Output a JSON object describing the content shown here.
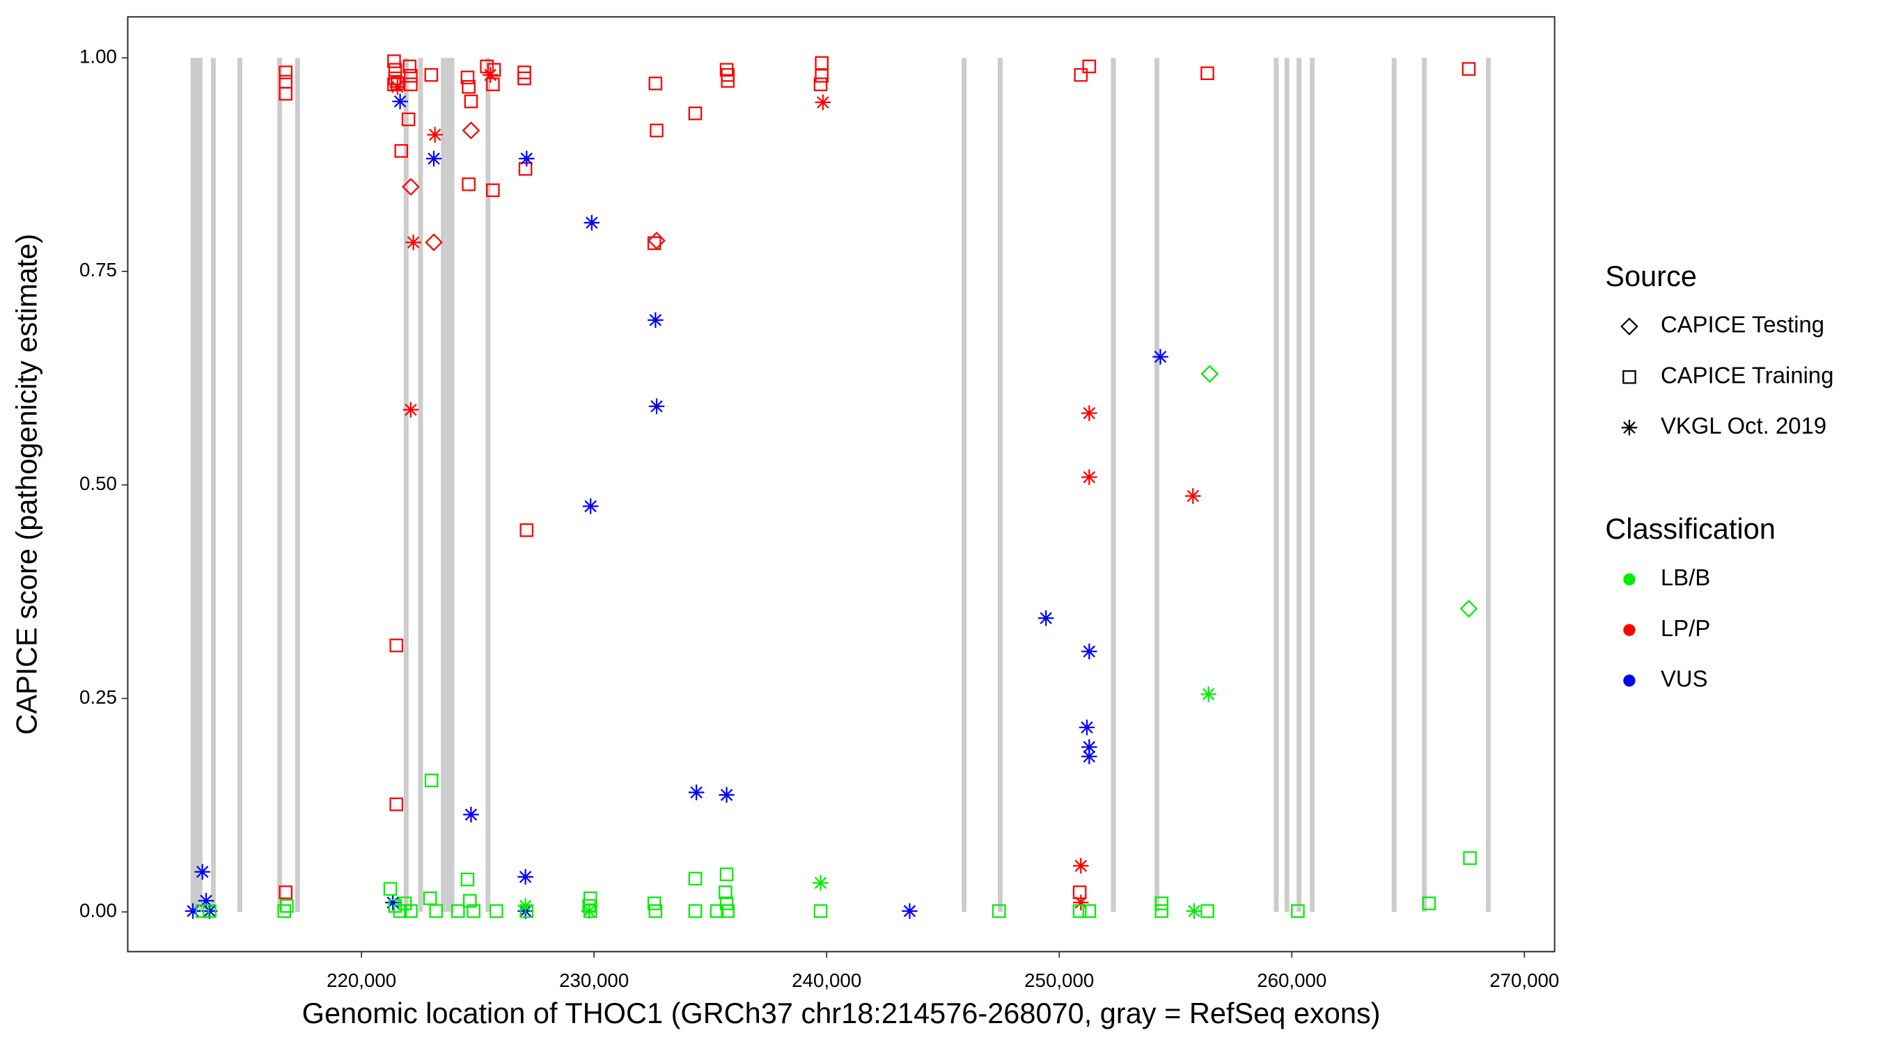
{
  "chart_data": {
    "type": "scatter",
    "xlabel": "Genomic location of THOC1 (GRCh37 chr18:214576-268070, gray = RefSeq exons)",
    "ylabel": "CAPICE score (pathogenicity estimate)",
    "xlim": [
      209950,
      271300
    ],
    "ylim": [
      -0.0465,
      1.048
    ],
    "xticks": [
      {
        "value": 220000,
        "label": "220,000"
      },
      {
        "value": 230000,
        "label": "230,000"
      },
      {
        "value": 240000,
        "label": "240,000"
      },
      {
        "value": 250000,
        "label": "250,000"
      },
      {
        "value": 260000,
        "label": "260,000"
      },
      {
        "value": 270000,
        "label": "270,000"
      }
    ],
    "yticks": [
      {
        "value": 0,
        "label": "0.00"
      },
      {
        "value": 0.25,
        "label": "0.25"
      },
      {
        "value": 0.5,
        "label": "0.50"
      },
      {
        "value": 0.75,
        "label": "0.75"
      },
      {
        "value": 1,
        "label": "1.00"
      }
    ],
    "grid": false,
    "exons": {
      "color": "#cccccc",
      "positions": [
        212750,
        212900,
        213060,
        213630,
        214770,
        216480,
        217250,
        221920,
        222540,
        223520,
        223730,
        223890,
        225440,
        245910,
        247460,
        252330,
        254200,
        259330,
        259790,
        260310,
        260880,
        264400,
        265700,
        268450
      ]
    },
    "legend": {
      "source": {
        "title": "Source",
        "items": [
          {
            "label": "CAPICE Testing",
            "marker": "diamond"
          },
          {
            "label": "CAPICE Training",
            "marker": "square"
          },
          {
            "label": "VKGL Oct. 2019",
            "marker": "asterisk"
          }
        ]
      },
      "classification": {
        "title": "Classification",
        "items": [
          {
            "label": "LB/B",
            "color": "#00ee00"
          },
          {
            "label": "LP/P",
            "color": "#ff0000"
          },
          {
            "label": "VUS",
            "color": "#0000ff"
          }
        ]
      }
    },
    "series": [
      {
        "color": "#ff0000",
        "marker": "square",
        "x": [
          221400,
          221450,
          221450,
          221400,
          221550,
          222070,
          222120,
          222120,
          221710,
          222020,
          223000,
          224560,
          224610,
          224710,
          224610,
          225390,
          225700,
          225650,
          225650,
          227000,
          227000,
          227050,
          227100,
          232640,
          232690,
          232590,
          234350,
          235700,
          235750,
          235750,
          239790,
          239790,
          239740,
          250930,
          251290,
          256370,
          267610,
          216740,
          216740,
          216740,
          216740,
          221500,
          221500,
          250880
        ],
        "y": [
          0.996,
          0.986,
          0.976,
          0.969,
          0.97,
          0.99,
          0.979,
          0.969,
          0.891,
          0.928,
          0.98,
          0.977,
          0.966,
          0.949,
          0.852,
          0.99,
          0.986,
          0.969,
          0.845,
          0.983,
          0.976,
          0.87,
          0.447,
          0.97,
          0.915,
          0.783,
          0.935,
          0.986,
          0.98,
          0.973,
          0.994,
          0.979,
          0.969,
          0.98,
          0.99,
          0.982,
          0.987,
          0.983,
          0.972,
          0.958,
          0.023,
          0.312,
          0.126,
          0.023
        ]
      },
      {
        "color": "#ff0000",
        "marker": "diamond",
        "x": [
          222120,
          223110,
          224710,
          232690
        ],
        "y": [
          0.849,
          0.784,
          0.915,
          0.786
        ]
      },
      {
        "color": "#ff0000",
        "marker": "asterisk",
        "x": [
          221550,
          225540,
          223160,
          222230,
          222120,
          239840,
          251290,
          251290,
          255750,
          250930,
          250930
        ],
        "y": [
          0.966,
          0.98,
          0.91,
          0.784,
          0.588,
          0.948,
          0.584,
          0.509,
          0.487,
          0.054,
          0.011
        ]
      },
      {
        "color": "#0000ff",
        "marker": "asterisk",
        "x": [
          213160,
          213320,
          212750,
          213470,
          221660,
          223110,
          227100,
          229900,
          229850,
          232640,
          232690,
          224710,
          234400,
          235700,
          227050,
          221350,
          227050,
          243570,
          249430,
          251290,
          251190,
          251290,
          251290,
          254350
        ],
        "y": [
          0.047,
          0.013,
          0.001,
          0.001,
          0.949,
          0.882,
          0.882,
          0.807,
          0.475,
          0.693,
          0.592,
          0.114,
          0.14,
          0.137,
          0.041,
          0.011,
          0.001,
          0.001,
          0.344,
          0.305,
          0.216,
          0.193,
          0.182,
          0.65
        ]
      },
      {
        "color": "#00ee00",
        "marker": "square",
        "x": [
          213160,
          213470,
          216680,
          216790,
          221240,
          221450,
          221660,
          221870,
          222120,
          223010,
          222950,
          223210,
          224150,
          224560,
          224660,
          224820,
          225800,
          227100,
          229840,
          229790,
          229840,
          232590,
          232640,
          234350,
          234350,
          235280,
          235700,
          235650,
          235700,
          235750,
          239740,
          247410,
          250880,
          251290,
          254400,
          254400,
          256370,
          260260,
          265900,
          267660
        ],
        "y": [
          0.001,
          0.001,
          0.001,
          0.007,
          0.027,
          0.007,
          0.001,
          0.01,
          0.001,
          0.154,
          0.016,
          0.001,
          0.001,
          0.038,
          0.013,
          0.001,
          0.001,
          0.001,
          0.016,
          0.007,
          0.001,
          0.01,
          0.001,
          0.039,
          0.001,
          0.001,
          0.044,
          0.023,
          0.01,
          0.001,
          0.001,
          0.001,
          0.001,
          0.001,
          0.01,
          0.001,
          0.001,
          0.001,
          0.01,
          0.063
        ]
      },
      {
        "color": "#00ee00",
        "marker": "diamond",
        "x": [
          256470,
          267610
        ],
        "y": [
          0.63,
          0.355
        ]
      },
      {
        "color": "#00ee00",
        "marker": "asterisk",
        "x": [
          239740,
          256420,
          255800,
          229790,
          227050
        ],
        "y": [
          0.034,
          0.255,
          0.001,
          0.001,
          0.007
        ]
      }
    ]
  }
}
